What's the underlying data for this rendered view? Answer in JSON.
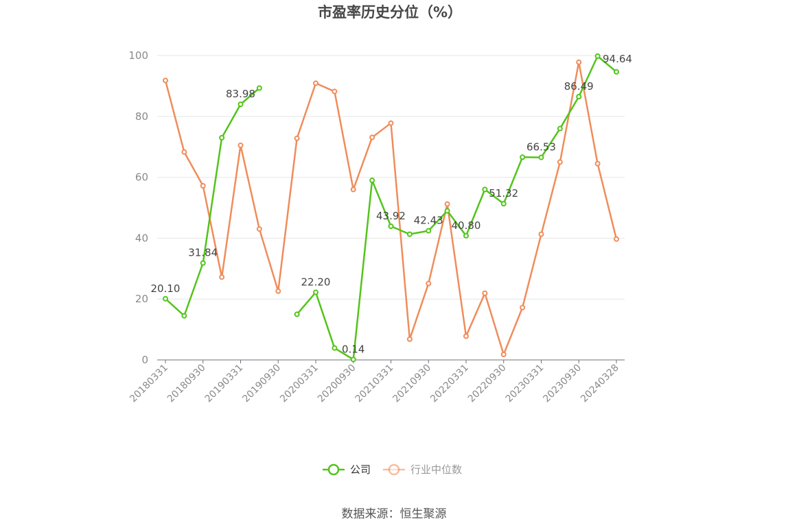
{
  "chart_data": {
    "type": "line",
    "title": "市盈率历史分位（%）",
    "ylim": [
      0,
      100
    ],
    "yticks": [
      0,
      20,
      40,
      60,
      80,
      100
    ],
    "grid": true,
    "legend_position": "bottom",
    "source": "数据来源：恒生聚源",
    "x_tick_labels": [
      "20180331",
      "20180930",
      "20190331",
      "20190930",
      "20200331",
      "20200930",
      "20210331",
      "20210930",
      "20220331",
      "20220930",
      "20230331",
      "20230930",
      "20240328"
    ],
    "x": [
      "20180331",
      "20180630",
      "20180930",
      "20181231",
      "20190331",
      "20190630",
      "20190930",
      "20191231",
      "20200331",
      "20200630",
      "20200930",
      "20201231",
      "20210331",
      "20210630",
      "20210930",
      "20211231",
      "20220331",
      "20220630",
      "20220930",
      "20221231",
      "20230331",
      "20230630",
      "20230930",
      "20231231",
      "20240328"
    ],
    "series": [
      {
        "name": "公司",
        "color": "#52c41a",
        "values": [
          20.1,
          14.5,
          31.84,
          73.0,
          83.98,
          89.3,
          null,
          15.0,
          22.2,
          3.9,
          0.14,
          59.0,
          43.92,
          41.3,
          42.43,
          49.0,
          40.8,
          56.0,
          51.32,
          66.6,
          66.53,
          76.0,
          86.49,
          99.8,
          94.64
        ],
        "labels": [
          "20.10",
          null,
          "31.84",
          null,
          "83.98",
          null,
          null,
          null,
          "22.20",
          null,
          "0.14",
          null,
          "43.92",
          null,
          "42.43",
          null,
          "40.80",
          null,
          "51.32",
          null,
          "66.53",
          null,
          "86.49",
          null,
          "94.64"
        ]
      },
      {
        "name": "行业中位数",
        "color": "#f08c5a",
        "values": [
          91.8,
          68.3,
          57.2,
          27.2,
          70.5,
          43.0,
          22.6,
          72.8,
          90.9,
          88.2,
          56.0,
          73.1,
          77.8,
          6.8,
          25.1,
          51.2,
          7.8,
          21.9,
          1.8,
          17.2,
          41.3,
          65.0,
          97.8,
          64.5,
          39.7
        ]
      }
    ]
  }
}
